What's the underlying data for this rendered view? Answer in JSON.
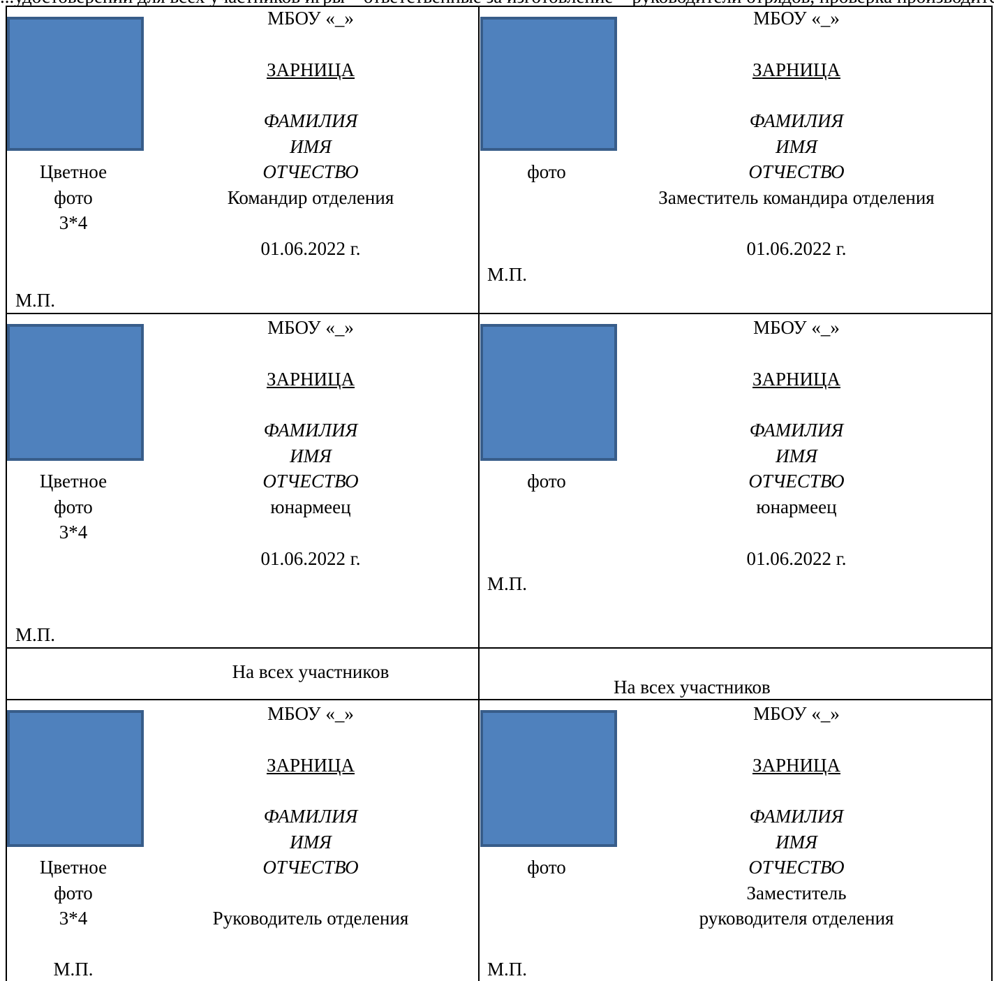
{
  "top_text": "...удостоверений для всех участников игры – ответственные за изготовление – руководители отрядов, проверка производится на регистрации команд",
  "accent": {
    "photo_fill": "#4f81bd",
    "photo_border": "#385d8a"
  },
  "cards": [
    {
      "photo_caption": [
        "Цветное",
        "фото",
        "3*4"
      ],
      "school": "МБОУ «_»",
      "title": "ЗАРНИЦА",
      "surname": "ФАМИЛИЯ",
      "name": "ИМЯ",
      "patronymic": "ОТЧЕСТВО",
      "role": [
        "Командир отделения"
      ],
      "date": "01.06.2022 г.",
      "stamp": "М.П."
    },
    {
      "photo_caption": [
        "фото"
      ],
      "school": "МБОУ «_»",
      "title": "ЗАРНИЦА",
      "surname": "ФАМИЛИЯ",
      "name": "ИМЯ",
      "patronymic": "ОТЧЕСТВО",
      "role": [
        "Заместитель командира отделения"
      ],
      "date": "01.06.2022 г.",
      "stamp": "М.П."
    },
    {
      "photo_caption": [
        "Цветное",
        "фото",
        "3*4"
      ],
      "school": "МБОУ «_»",
      "title": "ЗАРНИЦА",
      "surname": "ФАМИЛИЯ",
      "name": "ИМЯ",
      "patronymic": "ОТЧЕСТВО",
      "role": [
        "юнармеец"
      ],
      "date": "01.06.2022 г.",
      "stamp": "М.П."
    },
    {
      "photo_caption": [
        "фото"
      ],
      "school": "МБОУ «_»",
      "title": "ЗАРНИЦА",
      "surname": "ФАМИЛИЯ",
      "name": "ИМЯ",
      "patronymic": "ОТЧЕСТВО",
      "role": [
        "юнармеец"
      ],
      "date": "01.06.2022 г.",
      "stamp": "М.П."
    },
    {
      "photo_caption": [
        "Цветное",
        "фото",
        "3*4"
      ],
      "school": "МБОУ «_»",
      "title": "ЗАРНИЦА",
      "surname": "ФАМИЛИЯ",
      "name": "ИМЯ",
      "patronymic": "ОТЧЕСТВО",
      "role": [
        "Руководитель отделения"
      ],
      "date": "",
      "stamp": "М.П."
    },
    {
      "photo_caption": [
        "фото"
      ],
      "school": "МБОУ «_»",
      "title": "ЗАРНИЦА",
      "surname": "ФАМИЛИЯ",
      "name": "ИМЯ",
      "patronymic": "ОТЧЕСТВО",
      "role": [
        "Заместитель",
        "руководителя отделения"
      ],
      "date": "",
      "stamp": "М.П."
    }
  ],
  "notes": [
    "На всех участников",
    "На всех участников"
  ]
}
